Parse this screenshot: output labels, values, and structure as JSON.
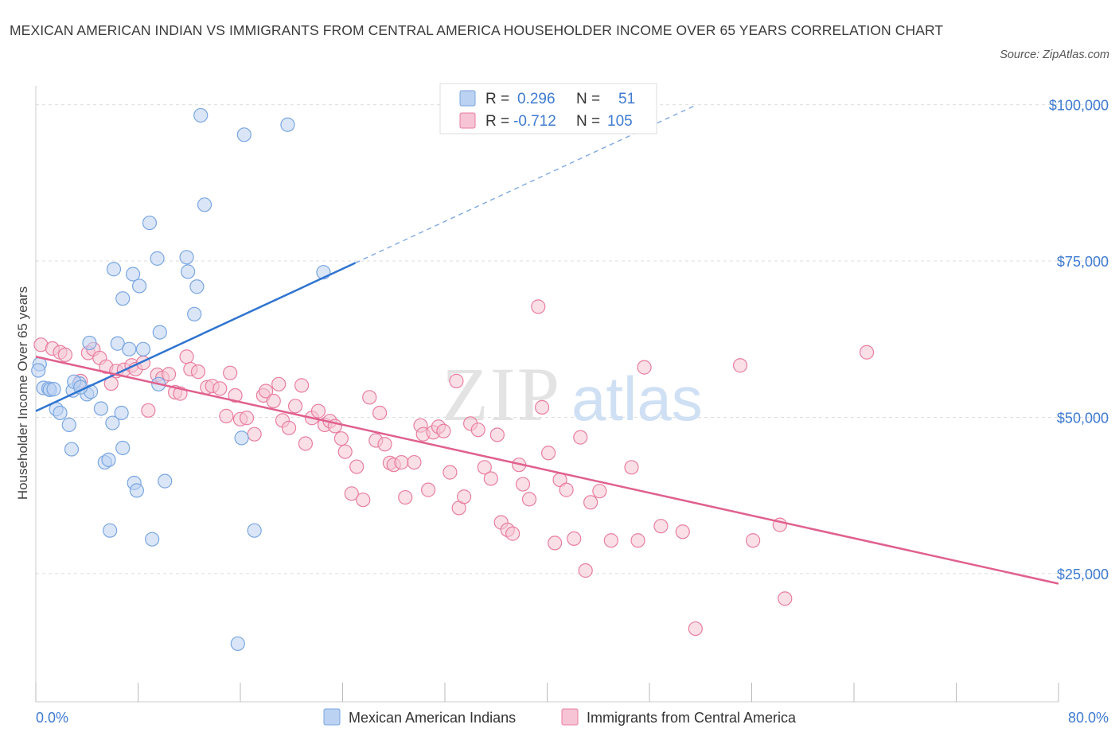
{
  "title": "MEXICAN AMERICAN INDIAN VS IMMIGRANTS FROM CENTRAL AMERICA HOUSEHOLDER INCOME OVER 65 YEARS CORRELATION CHART",
  "source": "Source: ZipAtlas.com",
  "watermark": {
    "zip": "ZIP",
    "atlas": "atlas"
  },
  "colors": {
    "blue": "#7aa6e0",
    "blue_fill": "#bcd2f2",
    "blue_line": "#2f74d0",
    "pink": "#e87ea0",
    "pink_fill": "#f6c4d4",
    "pink_line": "#e0608e",
    "tick_text": "#3f7bd0",
    "grid": "#dddddd"
  },
  "legend": {
    "rows": [
      {
        "r_label": "R =",
        "r_value": "0.296",
        "n_label": "N =",
        "n_value": "51"
      },
      {
        "r_label": "R =",
        "r_value": "-0.712",
        "n_label": "N =",
        "n_value": "105"
      }
    ]
  },
  "bottom_legend": [
    "Mexican American Indians",
    "Immigrants from Central America"
  ],
  "chart_data": {
    "type": "scatter",
    "title": "MEXICAN AMERICAN INDIAN VS IMMIGRANTS FROM CENTRAL AMERICA HOUSEHOLDER INCOME OVER 65 YEARS CORRELATION CHART",
    "xlabel": "",
    "ylabel": "Householder Income Over 65 years",
    "xlim": [
      0,
      80
    ],
    "ylim": [
      4500,
      103000
    ],
    "x_tick_labels": [
      "0.0%",
      "80.0%"
    ],
    "y_ticks": [
      25000,
      50000,
      75000,
      100000
    ],
    "y_tick_labels": [
      "$25,000",
      "$50,000",
      "$75,000",
      "$100,000"
    ],
    "grid": true,
    "legend_position": "top-center",
    "series": [
      {
        "name": "Mexican American Indians",
        "r": 0.296,
        "n": 51,
        "trend": {
          "x0": 0,
          "y0": 51000,
          "x1": 25,
          "y1": 74700,
          "dash_to_x": 51.5,
          "dash_to_y": 99800
        },
        "points": [
          [
            0.3,
            58500
          ],
          [
            0.2,
            57500
          ],
          [
            0.6,
            54700
          ],
          [
            1.0,
            54600
          ],
          [
            1.1,
            54400
          ],
          [
            1.4,
            54500
          ],
          [
            1.6,
            51300
          ],
          [
            1.9,
            50700
          ],
          [
            2.6,
            48800
          ],
          [
            2.8,
            44900
          ],
          [
            2.9,
            54300
          ],
          [
            3.4,
            55400
          ],
          [
            3.0,
            55700
          ],
          [
            4.0,
            53700
          ],
          [
            4.3,
            54100
          ],
          [
            4.2,
            61900
          ],
          [
            5.1,
            51400
          ],
          [
            5.4,
            42800
          ],
          [
            5.7,
            43200
          ],
          [
            5.8,
            31900
          ],
          [
            6.0,
            49100
          ],
          [
            6.4,
            61800
          ],
          [
            6.1,
            73700
          ],
          [
            6.7,
            50700
          ],
          [
            6.8,
            69000
          ],
          [
            6.8,
            45100
          ],
          [
            7.3,
            60900
          ],
          [
            7.6,
            72900
          ],
          [
            7.7,
            39500
          ],
          [
            7.9,
            38300
          ],
          [
            8.1,
            71000
          ],
          [
            8.4,
            60900
          ],
          [
            8.9,
            81100
          ],
          [
            9.1,
            30500
          ],
          [
            9.5,
            75400
          ],
          [
            9.6,
            55300
          ],
          [
            9.7,
            63600
          ],
          [
            10.1,
            39800
          ],
          [
            11.8,
            75600
          ],
          [
            11.9,
            73300
          ],
          [
            12.4,
            66500
          ],
          [
            12.6,
            70900
          ],
          [
            12.9,
            98300
          ],
          [
            13.2,
            84000
          ],
          [
            15.8,
            13800
          ],
          [
            16.1,
            46700
          ],
          [
            16.3,
            95200
          ],
          [
            17.1,
            31900
          ],
          [
            19.7,
            96800
          ],
          [
            22.5,
            73200
          ],
          [
            3.5,
            54800
          ]
        ]
      },
      {
        "name": "Immigrants from Central America",
        "r": -0.712,
        "n": 105,
        "trend": {
          "x0": 0,
          "y0": 59700,
          "x1": 80,
          "y1": 23400
        },
        "points": [
          [
            0.4,
            61600
          ],
          [
            1.3,
            61000
          ],
          [
            1.9,
            60400
          ],
          [
            2.3,
            60000
          ],
          [
            3.5,
            55800
          ],
          [
            4.1,
            60300
          ],
          [
            4.5,
            60900
          ],
          [
            5.0,
            59500
          ],
          [
            5.5,
            58100
          ],
          [
            5.9,
            55400
          ],
          [
            6.3,
            57400
          ],
          [
            6.9,
            57600
          ],
          [
            7.5,
            58300
          ],
          [
            7.8,
            57700
          ],
          [
            8.4,
            58700
          ],
          [
            8.8,
            51100
          ],
          [
            9.5,
            56800
          ],
          [
            9.9,
            56300
          ],
          [
            10.4,
            56900
          ],
          [
            10.9,
            54000
          ],
          [
            11.3,
            53800
          ],
          [
            11.8,
            59700
          ],
          [
            12.1,
            57700
          ],
          [
            12.7,
            57300
          ],
          [
            13.4,
            54800
          ],
          [
            13.8,
            55000
          ],
          [
            14.4,
            54600
          ],
          [
            14.9,
            50200
          ],
          [
            15.2,
            57100
          ],
          [
            15.6,
            53500
          ],
          [
            16.0,
            49700
          ],
          [
            16.5,
            49900
          ],
          [
            17.1,
            47300
          ],
          [
            17.8,
            53500
          ],
          [
            18.0,
            54200
          ],
          [
            18.6,
            52600
          ],
          [
            19.0,
            55300
          ],
          [
            19.3,
            49500
          ],
          [
            19.8,
            48300
          ],
          [
            20.3,
            51800
          ],
          [
            20.8,
            55100
          ],
          [
            21.1,
            45800
          ],
          [
            21.6,
            49900
          ],
          [
            22.1,
            51000
          ],
          [
            22.6,
            48800
          ],
          [
            23.0,
            49400
          ],
          [
            23.4,
            48600
          ],
          [
            23.9,
            46600
          ],
          [
            24.2,
            44500
          ],
          [
            24.7,
            37800
          ],
          [
            25.1,
            42100
          ],
          [
            25.6,
            36800
          ],
          [
            26.1,
            53200
          ],
          [
            26.6,
            46300
          ],
          [
            26.9,
            50700
          ],
          [
            27.3,
            45700
          ],
          [
            27.7,
            42700
          ],
          [
            28.0,
            42400
          ],
          [
            28.6,
            42800
          ],
          [
            28.9,
            37200
          ],
          [
            29.6,
            42800
          ],
          [
            30.1,
            48700
          ],
          [
            30.3,
            47300
          ],
          [
            30.7,
            38400
          ],
          [
            31.1,
            47600
          ],
          [
            31.5,
            48500
          ],
          [
            31.9,
            47800
          ],
          [
            32.4,
            41200
          ],
          [
            32.9,
            55800
          ],
          [
            33.1,
            35500
          ],
          [
            33.5,
            37300
          ],
          [
            34.0,
            49000
          ],
          [
            34.6,
            48000
          ],
          [
            35.1,
            42000
          ],
          [
            35.6,
            40200
          ],
          [
            36.1,
            47200
          ],
          [
            36.4,
            33200
          ],
          [
            36.9,
            32000
          ],
          [
            37.3,
            31400
          ],
          [
            37.8,
            42400
          ],
          [
            38.1,
            39300
          ],
          [
            38.6,
            36900
          ],
          [
            39.3,
            67700
          ],
          [
            39.6,
            51600
          ],
          [
            40.1,
            44300
          ],
          [
            40.6,
            29900
          ],
          [
            41.0,
            40000
          ],
          [
            41.5,
            38400
          ],
          [
            42.1,
            30600
          ],
          [
            42.6,
            46800
          ],
          [
            43.0,
            25500
          ],
          [
            43.4,
            36400
          ],
          [
            44.1,
            38200
          ],
          [
            45.0,
            30300
          ],
          [
            46.6,
            42000
          ],
          [
            47.1,
            30300
          ],
          [
            47.6,
            58000
          ],
          [
            48.9,
            32600
          ],
          [
            50.6,
            31700
          ],
          [
            51.6,
            16200
          ],
          [
            55.1,
            58300
          ],
          [
            56.1,
            30300
          ],
          [
            58.6,
            21000
          ],
          [
            58.2,
            32800
          ],
          [
            65.0,
            60400
          ]
        ]
      }
    ]
  }
}
